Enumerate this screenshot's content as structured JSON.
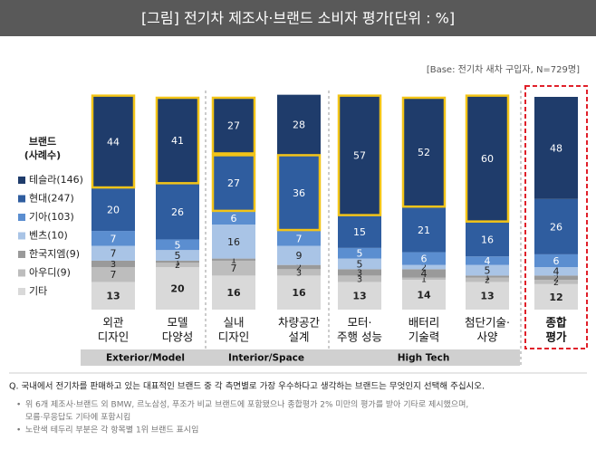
{
  "chart_data": {
    "type": "stacked_bar",
    "title": "[그림] 전기차 제조사·브랜드 소비자 평가[단위 : %]",
    "base_note": "[Base: 전기차 새차 구입자, N=729명]",
    "legend_title": [
      "브랜드",
      "(사례수)"
    ],
    "categories": [
      [
        "외관",
        "디자인"
      ],
      [
        "모델",
        "다양성"
      ],
      [
        "실내",
        "디자인"
      ],
      [
        "차량공간",
        "설계"
      ],
      [
        "모터·",
        "주행 성능"
      ],
      [
        "배터리",
        "기술력"
      ],
      [
        "첨단기술·",
        "사양"
      ],
      [
        "종합",
        "평가"
      ]
    ],
    "groups": [
      {
        "label": "Exterior/Model",
        "from": 0,
        "to": 1
      },
      {
        "label": "Interior/Space",
        "from": 2,
        "to": 3
      },
      {
        "label": "High Tech",
        "from": 4,
        "to": 6
      }
    ],
    "ylim": [
      0,
      100
    ],
    "series": [
      {
        "name": "기타",
        "color": "#d9d9d9",
        "label_color": "#222",
        "values": [
          13,
          20,
          16,
          16,
          13,
          14,
          13,
          12
        ]
      },
      {
        "name": "아우디(9)",
        "color": "#bdbdbd",
        "label_color": "#222",
        "values": [
          7,
          2,
          7,
          3,
          3,
          1,
          2,
          2
        ]
      },
      {
        "name": "한국지엠(9)",
        "color": "#9a9a9a",
        "label_color": "#222",
        "values": [
          3,
          1,
          1,
          2,
          3,
          4,
          1,
          2
        ]
      },
      {
        "name": "벤츠(10)",
        "color": "#a9c4e6",
        "label_color": "#222",
        "values": [
          7,
          5,
          16,
          9,
          5,
          2,
          5,
          4
        ]
      },
      {
        "name": "기아(103)",
        "color": "#5b8ed0",
        "label_color": "#fff",
        "values": [
          7,
          5,
          6,
          7,
          5,
          6,
          4,
          6
        ]
      },
      {
        "name": "현대(247)",
        "color": "#2f5d9f",
        "label_color": "#fff",
        "values": [
          20,
          26,
          27,
          36,
          15,
          21,
          16,
          26
        ]
      },
      {
        "name": "테슬라(146)",
        "color": "#1f3c6b",
        "label_color": "#fff",
        "values": [
          44,
          41,
          27,
          28,
          57,
          52,
          60,
          48
        ]
      }
    ],
    "highlight_color": "#f2c418",
    "highlight": [
      [
        6
      ],
      [
        6
      ],
      [
        5,
        6
      ],
      [
        5
      ],
      [
        6
      ],
      [
        6
      ],
      [
        6
      ],
      []
    ],
    "overall_box_color": "#e0202a",
    "question": "Q. 국내에서 전기차를 판매하고 있는 대표적인 브랜드 중 각 측면별로 가장 우수하다고 생각하는 브랜드는 무엇인지 선택해 주십시오.",
    "notes": [
      "위 6개 제조사·브랜드 외 BMW, 르노삼성, 푸조가 비교 브랜드에 포함됐으나 종합평가 2% 미만의 평가를 받아 기타로 제시했으며,",
      "모름·무응답도 기타에 포함시킴",
      "노란색 테두리 부분은 각 항목별 1위 브랜드 표시임"
    ]
  }
}
